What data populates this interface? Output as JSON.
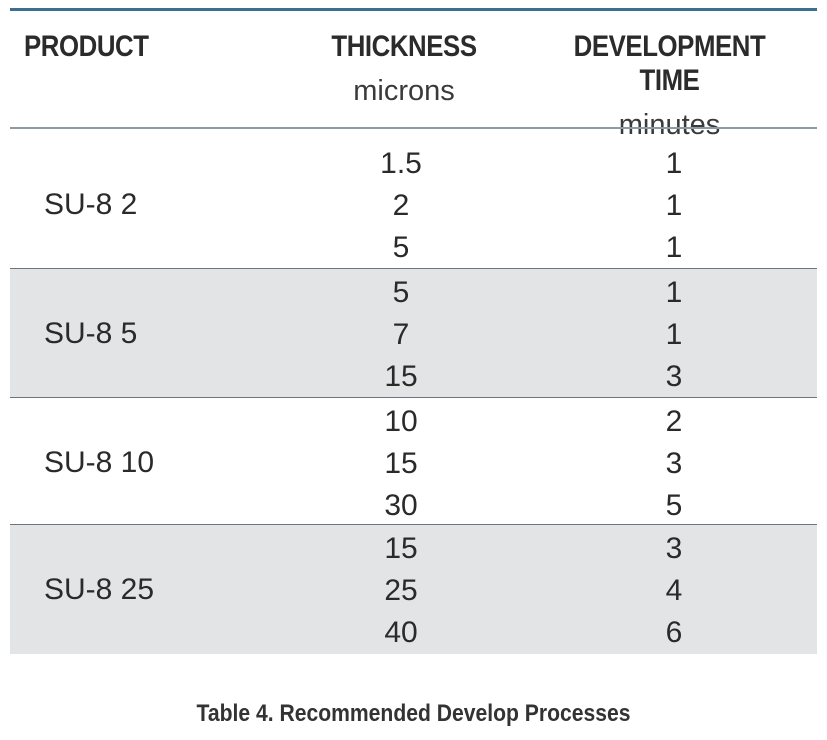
{
  "table": {
    "headers": {
      "product": "PRODUCT",
      "thickness": "THICKNESS",
      "thickness_unit": "microns",
      "development_time": "DEVELOPMENT TIME",
      "development_time_unit": "minutes"
    },
    "groups": [
      {
        "product": "SU-8 2",
        "thickness": [
          "1.5",
          "2",
          "5"
        ],
        "time": [
          "1",
          "1",
          "1"
        ]
      },
      {
        "product": "SU-8 5",
        "thickness": [
          "5",
          "7",
          "15"
        ],
        "time": [
          "1",
          "1",
          "3"
        ]
      },
      {
        "product": "SU-8 10",
        "thickness": [
          "10",
          "15",
          "30"
        ],
        "time": [
          "2",
          "3",
          "5"
        ]
      },
      {
        "product": "SU-8 25",
        "thickness": [
          "15",
          "25",
          "40"
        ],
        "time": [
          "3",
          "4",
          "6"
        ]
      }
    ]
  },
  "caption": "Table 4. Recommended Develop Processes",
  "colors": {
    "top_rule": "#3b6f8f",
    "shaded_row": "#e3e4e6"
  }
}
